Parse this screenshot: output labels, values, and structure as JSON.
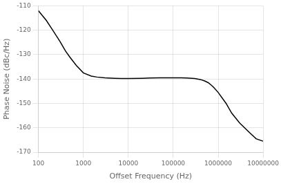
{
  "chart_data": {
    "type": "line",
    "xlabel": "Offset Frequency (Hz)",
    "ylabel": "Phase Noise (dBc/Hz)",
    "x": [
      100,
      150,
      200,
      300,
      400,
      500,
      700,
      1000,
      1500,
      2000,
      3000,
      5000,
      7000,
      10000,
      20000,
      30000,
      50000,
      70000,
      100000,
      150000,
      200000,
      300000,
      400000,
      500000,
      600000,
      700000,
      800000,
      1000000,
      1500000,
      2000000,
      3000000,
      5000000,
      7000000,
      10000000
    ],
    "values": [
      -112,
      -116,
      -119.5,
      -124.5,
      -128.5,
      -131,
      -134.5,
      -137.5,
      -138.8,
      -139.2,
      -139.5,
      -139.7,
      -139.8,
      -139.8,
      -139.7,
      -139.6,
      -139.5,
      -139.5,
      -139.5,
      -139.5,
      -139.6,
      -139.8,
      -140.2,
      -140.8,
      -141.5,
      -142.5,
      -143.5,
      -145.5,
      -150,
      -154,
      -158,
      -162,
      -164.5,
      -165.5
    ],
    "color": "#000000",
    "log": "x",
    "xlim": [
      100,
      10000000
    ],
    "xticks": [
      100,
      1000,
      10000,
      100000,
      1000000,
      10000000
    ],
    "ylim": [
      -170,
      -110
    ],
    "yticks": [
      -170,
      -160,
      -150,
      -140,
      -130,
      -120,
      -110
    ],
    "grid": true
  }
}
